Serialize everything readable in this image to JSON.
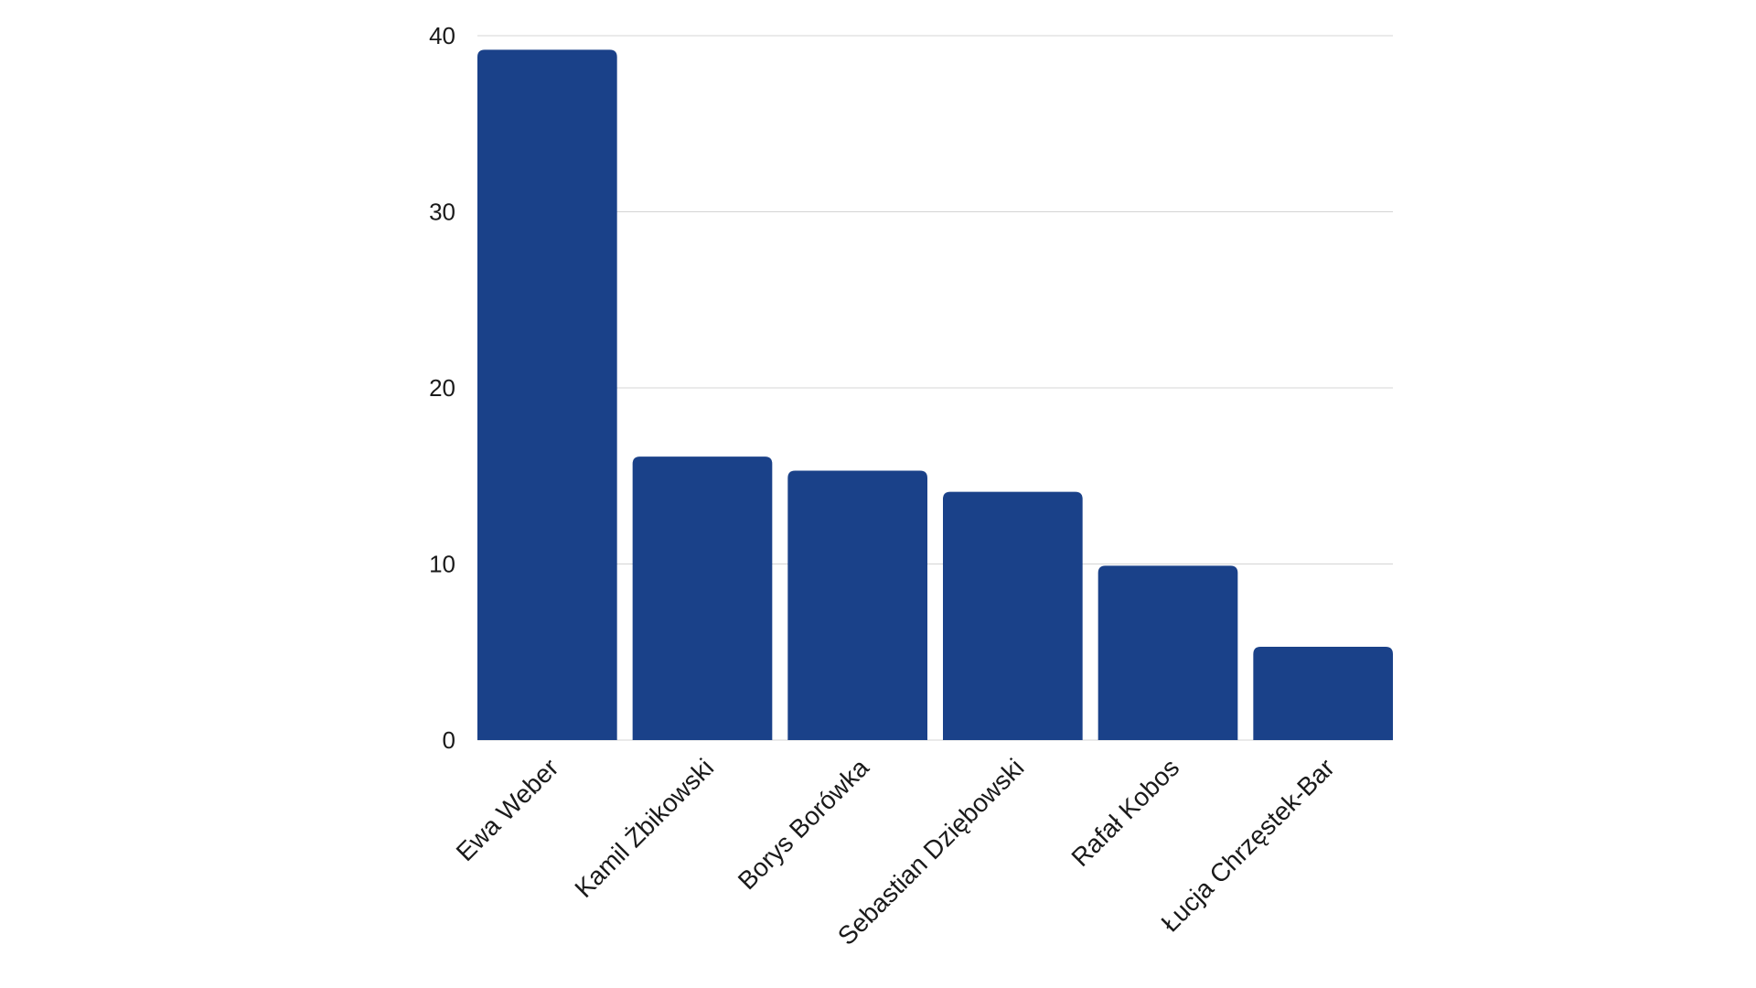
{
  "chart_data": {
    "type": "bar",
    "categories": [
      "Ewa Weber",
      "Kamil Żbikowski",
      "Borys Borówka",
      "Sebastian Dziębowski",
      "Rafał Kobos",
      "Łucja Chrzęstek-Bar"
    ],
    "values": [
      39.2,
      16.1,
      15.3,
      14.1,
      9.9,
      5.3
    ],
    "title": "",
    "xlabel": "",
    "ylabel": "",
    "ylim": [
      0,
      40
    ],
    "yticks": [
      "0",
      "10",
      "20",
      "30",
      "40"
    ],
    "grid": true,
    "bar_color": "#1a4189"
  }
}
